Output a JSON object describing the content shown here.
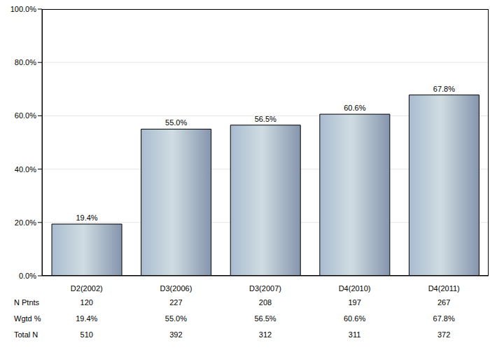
{
  "chart_data": {
    "type": "bar",
    "categories": [
      "D2(2002)",
      "D3(2006)",
      "D3(2007)",
      "D4(2010)",
      "D4(2011)"
    ],
    "values": [
      19.4,
      55.0,
      56.5,
      60.6,
      67.8
    ],
    "value_labels": [
      "19.4%",
      "55.0%",
      "56.5%",
      "60.6%",
      "67.8%"
    ],
    "data_labels": true,
    "color": "#a9bcd0",
    "ylim": [
      0,
      100
    ],
    "yticks": [
      {
        "value": 0,
        "label": "0.0%"
      },
      {
        "value": 20,
        "label": "20.0%"
      },
      {
        "value": 40,
        "label": "40.0%"
      },
      {
        "value": 60,
        "label": "60.0%"
      },
      {
        "value": 80,
        "label": "80.0%"
      },
      {
        "value": 100,
        "label": "100.0%"
      }
    ],
    "grid": true,
    "table": {
      "rows": [
        {
          "label": "N Ptnts",
          "values": [
            120,
            227,
            208,
            197,
            267
          ]
        },
        {
          "label": "Wgtd %",
          "values": [
            19.4,
            55.0,
            56.5,
            60.6,
            67.8
          ],
          "value_labels": [
            "19.4%",
            "55.0%",
            "56.5%",
            "60.6%",
            "67.8%"
          ]
        },
        {
          "label": "Total N",
          "values": [
            510,
            392,
            312,
            311,
            372
          ]
        }
      ]
    }
  }
}
